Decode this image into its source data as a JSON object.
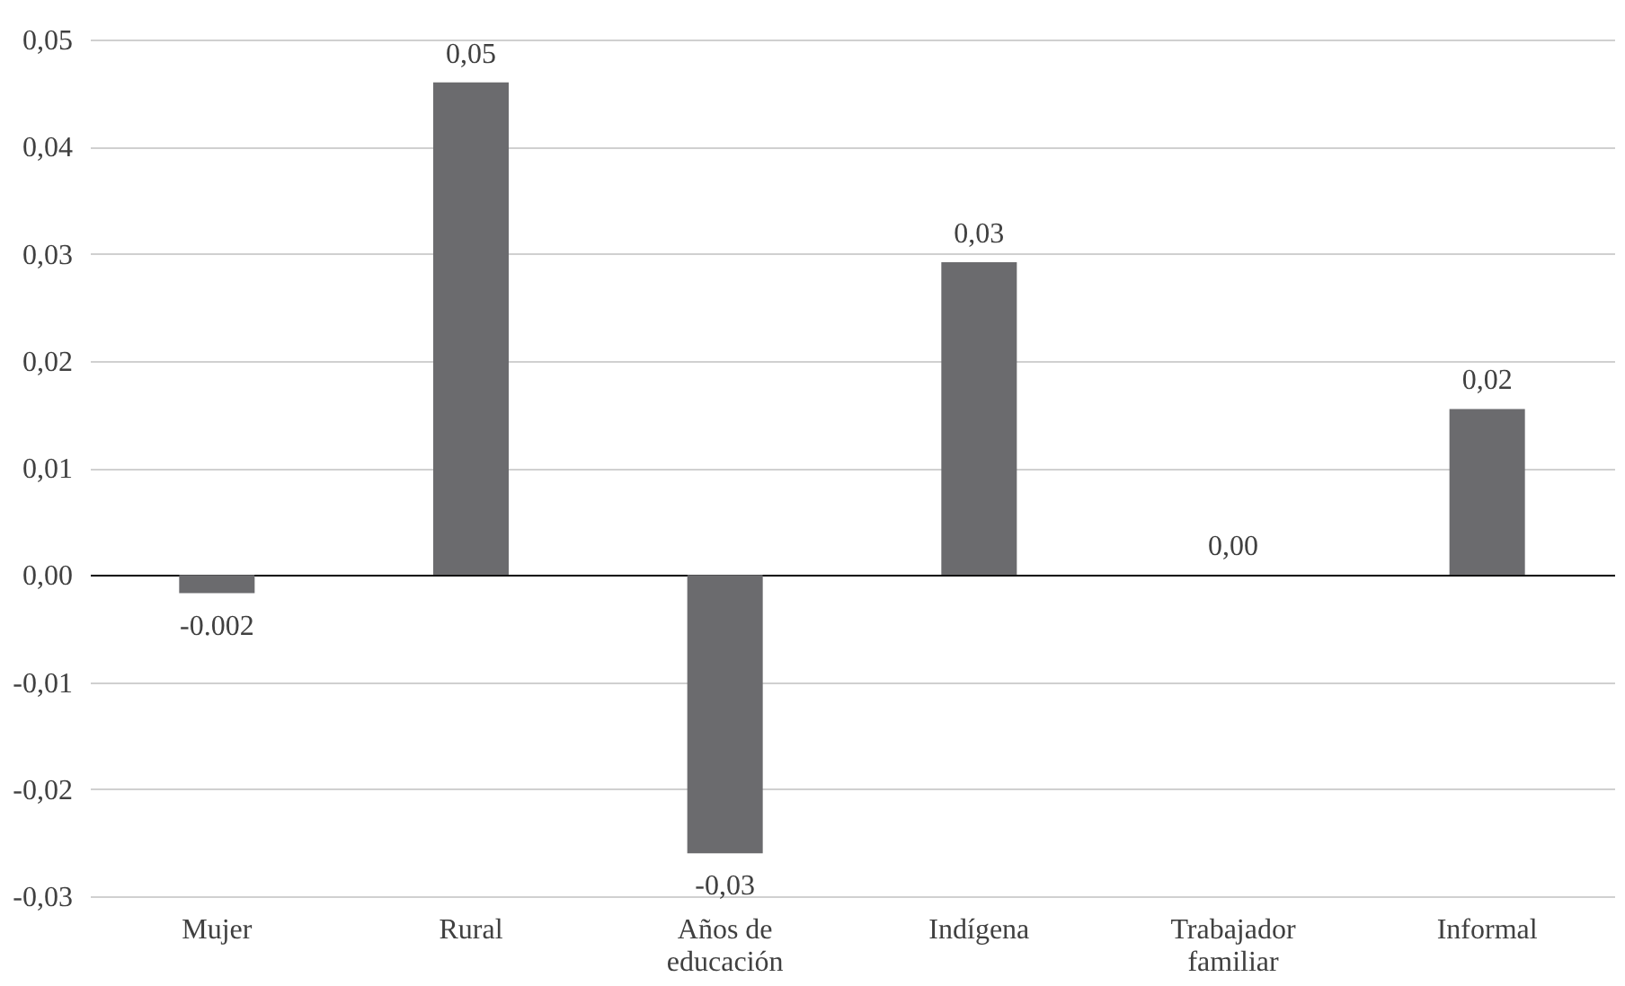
{
  "chart_data": {
    "type": "bar",
    "categories": [
      "Mujer",
      "Rural",
      "Años de educación",
      "Indígena",
      "Trabajador familiar",
      "Informal"
    ],
    "values": [
      -0.0017,
      0.046,
      -0.026,
      0.0292,
      0,
      0.0155
    ],
    "value_labels": [
      "-0.002",
      "0,05",
      "-0,03",
      "0,03",
      "0,00",
      "0,02"
    ],
    "color": "#6b6b6e",
    "ylim": [
      -0.03,
      0.05
    ],
    "yticks": [
      {
        "value": -0.03,
        "label": "-0,03"
      },
      {
        "value": -0.02,
        "label": "-0,02"
      },
      {
        "value": -0.01,
        "label": "-0,01"
      },
      {
        "value": 0,
        "label": "0,00"
      },
      {
        "value": 0.01,
        "label": "0,01"
      },
      {
        "value": 0.02,
        "label": "0,02"
      },
      {
        "value": 0.03,
        "label": "0,03"
      },
      {
        "value": 0.04,
        "label": "0,04"
      },
      {
        "value": 0.05,
        "label": "0,05"
      }
    ],
    "grid": "y"
  }
}
